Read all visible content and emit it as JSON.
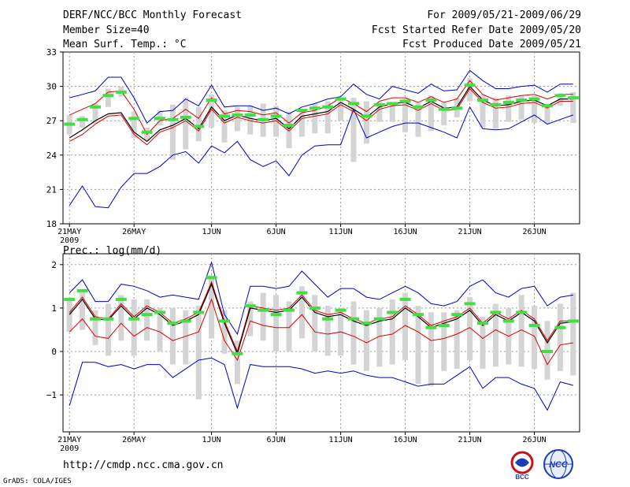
{
  "header": {
    "title": "DERF/NCC/BCC Monthly Forecast",
    "member_size": "Member Size=40",
    "period": "For 2009/05/21-2009/06/29",
    "refer_date": "Fcst Started Refer Date 2009/05/20",
    "produced_date": "Fcst Produced Date 2009/05/21"
  },
  "footer": {
    "url": "http://cmdp.ncc.cma.gov.cn",
    "credit": "GrADS: COLA/IGES",
    "logo_left_text": "BCC",
    "logo_right_text": "NCC"
  },
  "colors": {
    "ensemble_bounds": "#0000c8",
    "ensemble_mean": "#000000",
    "percentile_lines": "#dc0000",
    "box": "#d4d4d4",
    "median_marker": "#44dd44",
    "grid": "#999999"
  },
  "chart_data": [
    {
      "type": "box-line",
      "title": "Mean Surf. Temp.: °C",
      "ylim": [
        18,
        33
      ],
      "yticks": [
        18,
        21,
        24,
        27,
        30,
        33
      ],
      "xticks": [
        {
          "day": 0,
          "label": "21MAY"
        },
        {
          "day": 5,
          "label": "26MAY"
        },
        {
          "day": 11,
          "label": "1JUN"
        },
        {
          "day": 16,
          "label": "6JUN"
        },
        {
          "day": 21,
          "label": "11JUN"
        },
        {
          "day": 26,
          "label": "16JUN"
        },
        {
          "day": 31,
          "label": "21JUN"
        },
        {
          "day": 36,
          "label": "26JUN"
        }
      ],
      "xyear": "2009",
      "days": 40,
      "max": [
        29.0,
        29.3,
        29.6,
        30.8,
        30.8,
        29.0,
        26.8,
        27.8,
        27.9,
        28.9,
        28.3,
        30.1,
        28.2,
        28.3,
        28.3,
        27.9,
        28.1,
        27.6,
        28.2,
        28.5,
        28.9,
        29.1,
        30.2,
        29.3,
        28.9,
        30.0,
        29.7,
        29.4,
        30.2,
        29.6,
        29.7,
        31.4,
        30.5,
        29.8,
        29.8,
        30.0,
        30.1,
        29.5,
        30.2,
        30.2
      ],
      "upper": [
        27.5,
        28.0,
        28.5,
        29.5,
        29.6,
        28.0,
        25.8,
        27.0,
        27.2,
        28.0,
        27.2,
        29.0,
        27.6,
        27.9,
        27.8,
        27.5,
        27.7,
        26.8,
        27.7,
        27.9,
        28.3,
        29.0,
        28.5,
        27.8,
        28.7,
        29.0,
        29.0,
        28.6,
        29.1,
        28.6,
        28.9,
        30.5,
        29.3,
        28.8,
        29.0,
        29.2,
        29.3,
        28.9,
        29.3,
        29.3
      ],
      "mean": [
        25.5,
        26.2,
        27.0,
        27.6,
        27.7,
        26.0,
        25.2,
        26.2,
        26.6,
        27.2,
        26.3,
        28.2,
        27.0,
        27.5,
        27.2,
        27.0,
        27.2,
        26.3,
        27.4,
        27.6,
        27.8,
        28.6,
        28.0,
        27.3,
        28.2,
        28.5,
        28.6,
        28.1,
        28.7,
        28.1,
        28.2,
        30.0,
        28.8,
        28.3,
        28.4,
        28.7,
        28.8,
        28.3,
        28.9,
        28.9
      ],
      "lower": [
        25.2,
        25.8,
        26.7,
        27.4,
        27.5,
        25.8,
        24.9,
        26.0,
        26.4,
        27.0,
        26.1,
        28.0,
        26.8,
        27.3,
        27.0,
        26.8,
        27.0,
        26.1,
        27.2,
        27.4,
        27.6,
        28.4,
        27.8,
        27.0,
        28.0,
        28.3,
        28.4,
        27.9,
        28.5,
        27.9,
        28.0,
        29.8,
        28.6,
        28.1,
        28.2,
        28.5,
        28.6,
        28.1,
        28.7,
        28.7
      ],
      "min": [
        19.6,
        21.3,
        19.5,
        19.4,
        21.2,
        22.4,
        22.4,
        23.0,
        24.0,
        24.3,
        23.3,
        24.8,
        24.2,
        25.2,
        23.6,
        23.0,
        23.5,
        22.2,
        24.0,
        24.8,
        24.9,
        24.9,
        28.0,
        25.5,
        26.0,
        26.5,
        26.8,
        26.8,
        26.4,
        26.0,
        25.5,
        28.2,
        26.3,
        26.2,
        26.3,
        26.9,
        27.5,
        26.7,
        27.1,
        27.5
      ],
      "box_top": [
        27.5,
        27.4,
        28.5,
        29.8,
        30.0,
        27.8,
        26.4,
        27.9,
        28.4,
        29.0,
        28.2,
        29.3,
        27.9,
        28.2,
        28.3,
        28.5,
        28.3,
        27.8,
        28.0,
        28.5,
        28.7,
        29.0,
        29.0,
        28.7,
        28.6,
        28.5,
        28.9,
        28.6,
        29.2,
        28.6,
        29.0,
        30.7,
        29.3,
        29.0,
        29.2,
        29.2,
        29.2,
        28.5,
        29.4,
        29.5
      ],
      "box_bot": [
        25.8,
        26.4,
        26.7,
        28.2,
        29.1,
        25.5,
        25.3,
        26.6,
        23.6,
        24.5,
        25.2,
        26.4,
        25.1,
        26.1,
        25.8,
        25.6,
        25.6,
        24.6,
        25.6,
        25.9,
        25.9,
        27.0,
        23.4,
        25.0,
        26.9,
        26.9,
        26.0,
        25.6,
        26.1,
        26.6,
        27.3,
        28.7,
        26.4,
        26.3,
        26.9,
        27.1,
        26.8,
        26.7,
        28.3,
        26.8
      ],
      "median": [
        26.7,
        27.1,
        28.2,
        29.2,
        29.5,
        27.2,
        26.0,
        27.2,
        27.1,
        27.3,
        26.5,
        28.8,
        27.4,
        27.5,
        27.5,
        27.1,
        27.4,
        26.6,
        27.9,
        28.1,
        28.2,
        28.9,
        28.5,
        27.4,
        28.4,
        28.5,
        28.7,
        28.2,
        28.8,
        28.0,
        28.1,
        30.1,
        28.8,
        28.4,
        28.6,
        28.8,
        28.9,
        28.3,
        29.2,
        29.0
      ]
    },
    {
      "type": "box-line",
      "title": "Prec.: log(mm/d)",
      "ylim": [
        -1.85,
        2.25
      ],
      "yticks": [
        -1,
        0,
        1,
        2
      ],
      "xticks": [
        {
          "day": 0,
          "label": "21MAY"
        },
        {
          "day": 5,
          "label": "26MAY"
        },
        {
          "day": 11,
          "label": "1JUN"
        },
        {
          "day": 16,
          "label": "6JUN"
        },
        {
          "day": 21,
          "label": "11JUN"
        },
        {
          "day": 26,
          "label": "16JUN"
        },
        {
          "day": 31,
          "label": "21JUN"
        },
        {
          "day": 36,
          "label": "26JUN"
        }
      ],
      "xyear": "2009",
      "days": 40,
      "max": [
        1.35,
        1.65,
        1.15,
        1.15,
        1.55,
        1.5,
        1.4,
        1.25,
        1.3,
        1.25,
        1.2,
        2.05,
        0.85,
        0.4,
        1.5,
        1.5,
        1.45,
        1.5,
        1.85,
        1.55,
        1.25,
        1.45,
        1.45,
        1.25,
        1.2,
        1.35,
        1.5,
        1.35,
        1.1,
        1.05,
        1.15,
        1.5,
        1.65,
        1.35,
        1.25,
        1.45,
        1.5,
        1.05,
        1.25,
        1.3
      ],
      "upper": [
        0.9,
        1.25,
        0.8,
        0.75,
        1.1,
        0.8,
        1.05,
        0.9,
        0.65,
        0.75,
        0.9,
        1.6,
        0.7,
        0.0,
        1.05,
        1.0,
        0.95,
        1.0,
        1.3,
        0.95,
        0.85,
        0.9,
        0.75,
        0.65,
        0.75,
        0.8,
        1.05,
        0.85,
        0.6,
        0.7,
        0.8,
        1.0,
        0.65,
        0.9,
        0.75,
        0.95,
        0.75,
        0.25,
        0.7,
        0.7
      ],
      "mean": [
        0.85,
        1.2,
        0.75,
        0.72,
        1.05,
        0.75,
        1.0,
        0.85,
        0.6,
        0.7,
        0.85,
        1.55,
        0.65,
        -0.05,
        1.0,
        0.95,
        0.9,
        0.95,
        1.25,
        0.9,
        0.8,
        0.85,
        0.7,
        0.6,
        0.7,
        0.75,
        1.0,
        0.8,
        0.55,
        0.65,
        0.75,
        0.95,
        0.6,
        0.85,
        0.7,
        0.9,
        0.7,
        0.2,
        0.65,
        0.68
      ],
      "lower": [
        0.45,
        0.75,
        0.35,
        0.3,
        0.65,
        0.35,
        0.55,
        0.45,
        0.25,
        0.35,
        0.45,
        1.2,
        0.25,
        -0.2,
        0.7,
        0.6,
        0.55,
        0.55,
        0.85,
        0.45,
        0.4,
        0.45,
        0.35,
        0.2,
        0.35,
        0.4,
        0.6,
        0.45,
        0.25,
        0.3,
        0.4,
        0.55,
        0.3,
        0.5,
        0.35,
        0.5,
        0.35,
        -0.3,
        0.15,
        0.2
      ],
      "min": [
        -1.25,
        -0.25,
        -0.25,
        -0.35,
        -0.3,
        -0.4,
        -0.3,
        -0.3,
        -0.6,
        -0.4,
        -0.2,
        -0.15,
        -0.3,
        -1.3,
        -0.3,
        -0.35,
        -0.35,
        -0.35,
        -0.4,
        -0.5,
        -0.45,
        -0.5,
        -0.45,
        -0.55,
        -0.6,
        -0.6,
        -0.7,
        -0.8,
        -0.75,
        -0.75,
        -0.55,
        -0.35,
        -0.85,
        -0.6,
        -0.6,
        -0.75,
        -0.85,
        -1.35,
        -0.7,
        -0.78
      ],
      "box_top": [
        1.2,
        1.4,
        0.95,
        1.1,
        1.3,
        1.2,
        1.2,
        1.0,
        1.0,
        0.95,
        1.05,
        1.75,
        0.95,
        0.25,
        1.15,
        1.35,
        1.3,
        1.15,
        1.5,
        1.3,
        1.05,
        1.0,
        1.15,
        0.95,
        1.0,
        1.2,
        1.35,
        1.05,
        0.9,
        0.9,
        0.95,
        1.25,
        0.8,
        1.1,
        1.0,
        1.3,
        1.05,
        0.7,
        1.1,
        1.35
      ],
      "box_bot": [
        0.45,
        0.5,
        0.15,
        -0.1,
        0.25,
        -0.1,
        0.25,
        0.0,
        -0.3,
        -0.3,
        -1.1,
        0.3,
        -0.05,
        -0.75,
        0.35,
        0.25,
        0.0,
        0.0,
        0.3,
        0.0,
        -0.1,
        -0.1,
        -0.3,
        -0.45,
        -0.35,
        -0.3,
        -0.2,
        -0.75,
        -0.8,
        -0.45,
        -0.4,
        -0.2,
        -0.4,
        -0.35,
        -0.3,
        -0.35,
        -0.4,
        -0.65,
        -0.45,
        -0.55
      ],
      "median": [
        1.2,
        1.4,
        0.75,
        0.75,
        1.2,
        0.75,
        0.85,
        0.9,
        0.65,
        0.7,
        0.9,
        1.7,
        0.7,
        -0.05,
        1.05,
        0.95,
        0.85,
        0.95,
        1.35,
        1.0,
        0.75,
        0.95,
        0.75,
        0.65,
        0.75,
        0.9,
        1.2,
        0.85,
        0.55,
        0.6,
        0.85,
        1.1,
        0.65,
        0.9,
        0.7,
        0.9,
        0.6,
        0.0,
        0.55,
        0.7
      ]
    }
  ]
}
